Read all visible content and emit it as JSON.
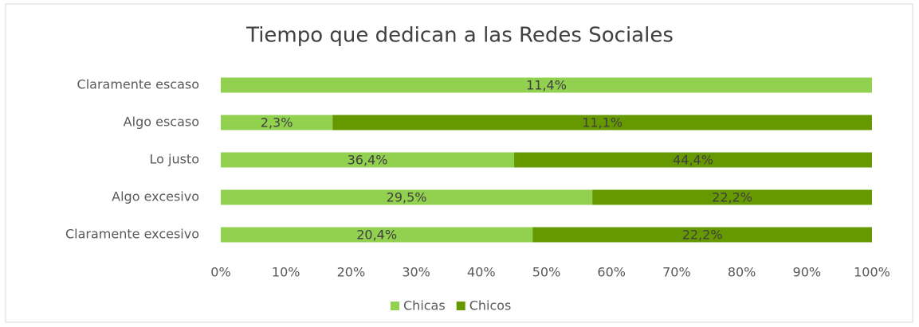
{
  "chart_data": {
    "type": "bar",
    "orientation": "horizontal",
    "stacking": "percent",
    "title": "Tiempo que dedican a las Redes Sociales",
    "categories": [
      "Claramente escaso",
      "Algo escaso",
      "Lo justo",
      "Algo excesivo",
      "Claramente excesivo"
    ],
    "series": [
      {
        "name": "Chicas",
        "color": "#92d050",
        "values": [
          11.4,
          2.3,
          36.4,
          29.5,
          20.4
        ],
        "value_labels": [
          "11,4%",
          "2,3%",
          "36,4%",
          "29,5%",
          "20,4%"
        ]
      },
      {
        "name": "Chicos",
        "color": "#669900",
        "values": [
          0,
          11.1,
          44.4,
          22.2,
          22.2
        ],
        "value_labels": [
          null,
          "11,1%",
          "44,4%",
          "22,2%",
          "22,2%"
        ]
      }
    ],
    "xlim": [
      0,
      100
    ],
    "xticks": [
      {
        "value": 0,
        "label": "0%"
      },
      {
        "value": 10,
        "label": "10%"
      },
      {
        "value": 20,
        "label": "20%"
      },
      {
        "value": 30,
        "label": "30%"
      },
      {
        "value": 40,
        "label": "40%"
      },
      {
        "value": 50,
        "label": "50%"
      },
      {
        "value": 60,
        "label": "60%"
      },
      {
        "value": 70,
        "label": "70%"
      },
      {
        "value": 80,
        "label": "80%"
      },
      {
        "value": 90,
        "label": "90%"
      },
      {
        "value": 100,
        "label": "100%"
      }
    ],
    "grid": false,
    "legend": "bottom"
  }
}
